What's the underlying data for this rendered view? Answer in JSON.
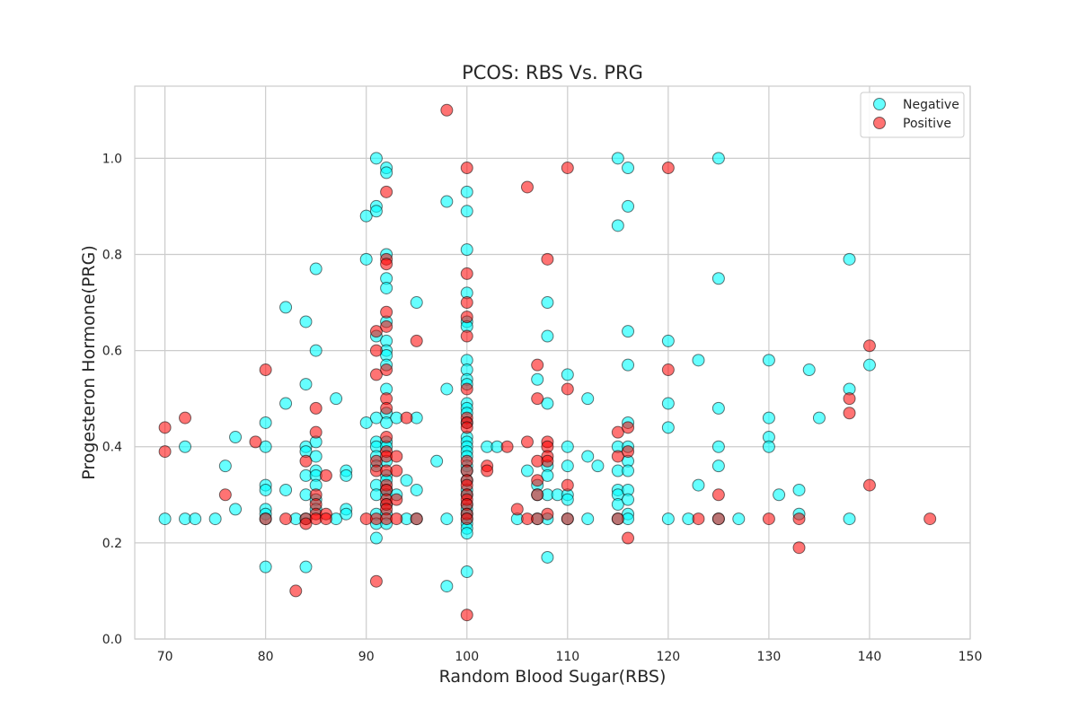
{
  "chart_data": {
    "type": "scatter",
    "title": "PCOS: RBS Vs. PRG",
    "xlabel": "Random Blood Sugar(RBS)",
    "ylabel": "Progesteron Hormone(PRG)",
    "xlim": [
      67,
      150
    ],
    "ylim": [
      0.0,
      1.15
    ],
    "xticks": [
      "70",
      "80",
      "90",
      "100",
      "110",
      "120",
      "130",
      "140",
      "150"
    ],
    "yticks": [
      "0.0",
      "0.2",
      "0.4",
      "0.6",
      "0.8",
      "1.0"
    ],
    "grid": true,
    "legend_position": "top-right",
    "series": [
      {
        "name": "Negative",
        "color": "#00ffff",
        "points": [
          [
            70,
            0.25
          ],
          [
            72,
            0.4
          ],
          [
            72,
            0.25
          ],
          [
            73,
            0.25
          ],
          [
            75,
            0.25
          ],
          [
            76,
            0.36
          ],
          [
            77,
            0.42
          ],
          [
            77,
            0.27
          ],
          [
            80,
            0.45
          ],
          [
            80,
            0.4
          ],
          [
            80,
            0.32
          ],
          [
            80,
            0.31
          ],
          [
            80,
            0.27
          ],
          [
            80,
            0.26
          ],
          [
            80,
            0.25
          ],
          [
            80,
            0.15
          ],
          [
            82,
            0.69
          ],
          [
            82,
            0.49
          ],
          [
            82,
            0.31
          ],
          [
            83,
            0.25
          ],
          [
            84,
            0.66
          ],
          [
            84,
            0.53
          ],
          [
            84,
            0.4
          ],
          [
            84,
            0.39
          ],
          [
            84,
            0.34
          ],
          [
            84,
            0.3
          ],
          [
            84,
            0.25
          ],
          [
            84,
            0.15
          ],
          [
            85,
            0.77
          ],
          [
            85,
            0.6
          ],
          [
            85,
            0.41
          ],
          [
            85,
            0.38
          ],
          [
            85,
            0.35
          ],
          [
            85,
            0.34
          ],
          [
            85,
            0.32
          ],
          [
            85,
            0.29
          ],
          [
            85,
            0.27
          ],
          [
            87,
            0.5
          ],
          [
            87,
            0.25
          ],
          [
            88,
            0.35
          ],
          [
            88,
            0.34
          ],
          [
            88,
            0.27
          ],
          [
            88,
            0.26
          ],
          [
            90,
            0.88
          ],
          [
            90,
            0.79
          ],
          [
            90,
            0.45
          ],
          [
            91,
            1.0
          ],
          [
            91,
            0.9
          ],
          [
            91,
            0.89
          ],
          [
            91,
            0.63
          ],
          [
            91,
            0.46
          ],
          [
            91,
            0.41
          ],
          [
            91,
            0.4
          ],
          [
            91,
            0.38
          ],
          [
            91,
            0.36
          ],
          [
            91,
            0.32
          ],
          [
            91,
            0.3
          ],
          [
            91,
            0.26
          ],
          [
            91,
            0.24
          ],
          [
            91,
            0.21
          ],
          [
            92,
            0.98
          ],
          [
            92,
            0.97
          ],
          [
            92,
            0.8
          ],
          [
            92,
            0.75
          ],
          [
            92,
            0.73
          ],
          [
            92,
            0.66
          ],
          [
            92,
            0.62
          ],
          [
            92,
            0.6
          ],
          [
            92,
            0.59
          ],
          [
            92,
            0.57
          ],
          [
            92,
            0.52
          ],
          [
            92,
            0.47
          ],
          [
            92,
            0.45
          ],
          [
            92,
            0.41
          ],
          [
            92,
            0.4
          ],
          [
            92,
            0.37
          ],
          [
            92,
            0.34
          ],
          [
            92,
            0.33
          ],
          [
            92,
            0.31
          ],
          [
            92,
            0.3
          ],
          [
            92,
            0.28
          ],
          [
            92,
            0.26
          ],
          [
            92,
            0.24
          ],
          [
            93,
            0.46
          ],
          [
            93,
            0.3
          ],
          [
            94,
            0.33
          ],
          [
            94,
            0.25
          ],
          [
            95,
            0.7
          ],
          [
            95,
            0.46
          ],
          [
            95,
            0.31
          ],
          [
            95,
            0.25
          ],
          [
            97,
            0.37
          ],
          [
            98,
            0.91
          ],
          [
            98,
            0.52
          ],
          [
            98,
            0.25
          ],
          [
            98,
            0.11
          ],
          [
            100,
            0.93
          ],
          [
            100,
            0.89
          ],
          [
            100,
            0.81
          ],
          [
            100,
            0.72
          ],
          [
            100,
            0.66
          ],
          [
            100,
            0.65
          ],
          [
            100,
            0.58
          ],
          [
            100,
            0.56
          ],
          [
            100,
            0.54
          ],
          [
            100,
            0.53
          ],
          [
            100,
            0.49
          ],
          [
            100,
            0.48
          ],
          [
            100,
            0.47
          ],
          [
            100,
            0.45
          ],
          [
            100,
            0.42
          ],
          [
            100,
            0.41
          ],
          [
            100,
            0.4
          ],
          [
            100,
            0.39
          ],
          [
            100,
            0.38
          ],
          [
            100,
            0.36
          ],
          [
            100,
            0.35
          ],
          [
            100,
            0.33
          ],
          [
            100,
            0.31
          ],
          [
            100,
            0.3
          ],
          [
            100,
            0.28
          ],
          [
            100,
            0.27
          ],
          [
            100,
            0.26
          ],
          [
            100,
            0.25
          ],
          [
            100,
            0.24
          ],
          [
            100,
            0.23
          ],
          [
            100,
            0.22
          ],
          [
            100,
            0.14
          ],
          [
            102,
            0.4
          ],
          [
            103,
            0.4
          ],
          [
            105,
            0.25
          ],
          [
            106,
            0.35
          ],
          [
            107,
            0.54
          ],
          [
            107,
            0.32
          ],
          [
            107,
            0.3
          ],
          [
            107,
            0.25
          ],
          [
            108,
            0.7
          ],
          [
            108,
            0.63
          ],
          [
            108,
            0.49
          ],
          [
            108,
            0.36
          ],
          [
            108,
            0.34
          ],
          [
            108,
            0.3
          ],
          [
            108,
            0.25
          ],
          [
            108,
            0.17
          ],
          [
            109,
            0.3
          ],
          [
            110,
            0.55
          ],
          [
            110,
            0.4
          ],
          [
            110,
            0.36
          ],
          [
            110,
            0.3
          ],
          [
            110,
            0.29
          ],
          [
            110,
            0.25
          ],
          [
            112,
            0.5
          ],
          [
            112,
            0.38
          ],
          [
            112,
            0.25
          ],
          [
            113,
            0.36
          ],
          [
            115,
            1.0
          ],
          [
            115,
            0.86
          ],
          [
            115,
            0.4
          ],
          [
            115,
            0.35
          ],
          [
            115,
            0.31
          ],
          [
            115,
            0.3
          ],
          [
            115,
            0.28
          ],
          [
            115,
            0.25
          ],
          [
            116,
            0.98
          ],
          [
            116,
            0.9
          ],
          [
            116,
            0.64
          ],
          [
            116,
            0.57
          ],
          [
            116,
            0.45
          ],
          [
            116,
            0.4
          ],
          [
            116,
            0.37
          ],
          [
            116,
            0.35
          ],
          [
            116,
            0.31
          ],
          [
            116,
            0.29
          ],
          [
            116,
            0.26
          ],
          [
            116,
            0.25
          ],
          [
            120,
            0.62
          ],
          [
            120,
            0.49
          ],
          [
            120,
            0.44
          ],
          [
            120,
            0.25
          ],
          [
            122,
            0.25
          ],
          [
            123,
            0.58
          ],
          [
            123,
            0.32
          ],
          [
            125,
            1.0
          ],
          [
            125,
            0.75
          ],
          [
            125,
            0.48
          ],
          [
            125,
            0.4
          ],
          [
            125,
            0.36
          ],
          [
            125,
            0.25
          ],
          [
            127,
            0.25
          ],
          [
            130,
            0.58
          ],
          [
            130,
            0.46
          ],
          [
            130,
            0.42
          ],
          [
            130,
            0.4
          ],
          [
            131,
            0.3
          ],
          [
            133,
            0.31
          ],
          [
            133,
            0.26
          ],
          [
            134,
            0.56
          ],
          [
            135,
            0.46
          ],
          [
            138,
            0.79
          ],
          [
            138,
            0.52
          ],
          [
            138,
            0.25
          ],
          [
            140,
            0.57
          ]
        ]
      },
      {
        "name": "Positive",
        "color": "#ff0000",
        "points": [
          [
            70,
            0.44
          ],
          [
            70,
            0.39
          ],
          [
            72,
            0.46
          ],
          [
            76,
            0.3
          ],
          [
            79,
            0.41
          ],
          [
            80,
            0.56
          ],
          [
            80,
            0.25
          ],
          [
            82,
            0.25
          ],
          [
            83,
            0.1
          ],
          [
            84,
            0.37
          ],
          [
            84,
            0.25
          ],
          [
            84,
            0.24
          ],
          [
            85,
            0.48
          ],
          [
            85,
            0.43
          ],
          [
            85,
            0.3
          ],
          [
            85,
            0.28
          ],
          [
            85,
            0.26
          ],
          [
            85,
            0.25
          ],
          [
            86,
            0.34
          ],
          [
            86,
            0.26
          ],
          [
            86,
            0.25
          ],
          [
            90,
            0.25
          ],
          [
            91,
            0.64
          ],
          [
            91,
            0.6
          ],
          [
            91,
            0.55
          ],
          [
            91,
            0.37
          ],
          [
            91,
            0.35
          ],
          [
            91,
            0.25
          ],
          [
            91,
            0.12
          ],
          [
            92,
            0.93
          ],
          [
            92,
            0.79
          ],
          [
            92,
            0.78
          ],
          [
            92,
            0.68
          ],
          [
            92,
            0.65
          ],
          [
            92,
            0.56
          ],
          [
            92,
            0.5
          ],
          [
            92,
            0.48
          ],
          [
            92,
            0.42
          ],
          [
            92,
            0.39
          ],
          [
            92,
            0.38
          ],
          [
            92,
            0.35
          ],
          [
            92,
            0.32
          ],
          [
            92,
            0.31
          ],
          [
            92,
            0.29
          ],
          [
            92,
            0.28
          ],
          [
            92,
            0.27
          ],
          [
            92,
            0.25
          ],
          [
            93,
            0.38
          ],
          [
            93,
            0.35
          ],
          [
            93,
            0.29
          ],
          [
            93,
            0.25
          ],
          [
            94,
            0.46
          ],
          [
            95,
            0.62
          ],
          [
            95,
            0.25
          ],
          [
            98,
            1.1
          ],
          [
            100,
            0.98
          ],
          [
            100,
            0.76
          ],
          [
            100,
            0.7
          ],
          [
            100,
            0.67
          ],
          [
            100,
            0.63
          ],
          [
            100,
            0.52
          ],
          [
            100,
            0.46
          ],
          [
            100,
            0.45
          ],
          [
            100,
            0.44
          ],
          [
            100,
            0.37
          ],
          [
            100,
            0.35
          ],
          [
            100,
            0.33
          ],
          [
            100,
            0.32
          ],
          [
            100,
            0.3
          ],
          [
            100,
            0.29
          ],
          [
            100,
            0.28
          ],
          [
            100,
            0.26
          ],
          [
            100,
            0.25
          ],
          [
            100,
            0.05
          ],
          [
            102,
            0.36
          ],
          [
            102,
            0.35
          ],
          [
            104,
            0.4
          ],
          [
            105,
            0.27
          ],
          [
            106,
            0.94
          ],
          [
            106,
            0.41
          ],
          [
            106,
            0.25
          ],
          [
            107,
            0.57
          ],
          [
            107,
            0.5
          ],
          [
            107,
            0.37
          ],
          [
            107,
            0.33
          ],
          [
            107,
            0.3
          ],
          [
            107,
            0.25
          ],
          [
            108,
            0.79
          ],
          [
            108,
            0.41
          ],
          [
            108,
            0.4
          ],
          [
            108,
            0.38
          ],
          [
            108,
            0.37
          ],
          [
            108,
            0.26
          ],
          [
            110,
            0.98
          ],
          [
            110,
            0.52
          ],
          [
            110,
            0.32
          ],
          [
            110,
            0.25
          ],
          [
            115,
            0.43
          ],
          [
            115,
            0.38
          ],
          [
            115,
            0.25
          ],
          [
            116,
            0.44
          ],
          [
            116,
            0.39
          ],
          [
            116,
            0.21
          ],
          [
            120,
            0.98
          ],
          [
            120,
            0.56
          ],
          [
            123,
            0.25
          ],
          [
            125,
            0.3
          ],
          [
            125,
            0.25
          ],
          [
            130,
            0.25
          ],
          [
            133,
            0.25
          ],
          [
            133,
            0.19
          ],
          [
            138,
            0.5
          ],
          [
            138,
            0.47
          ],
          [
            140,
            0.61
          ],
          [
            140,
            0.32
          ],
          [
            146,
            0.25
          ]
        ]
      }
    ]
  }
}
